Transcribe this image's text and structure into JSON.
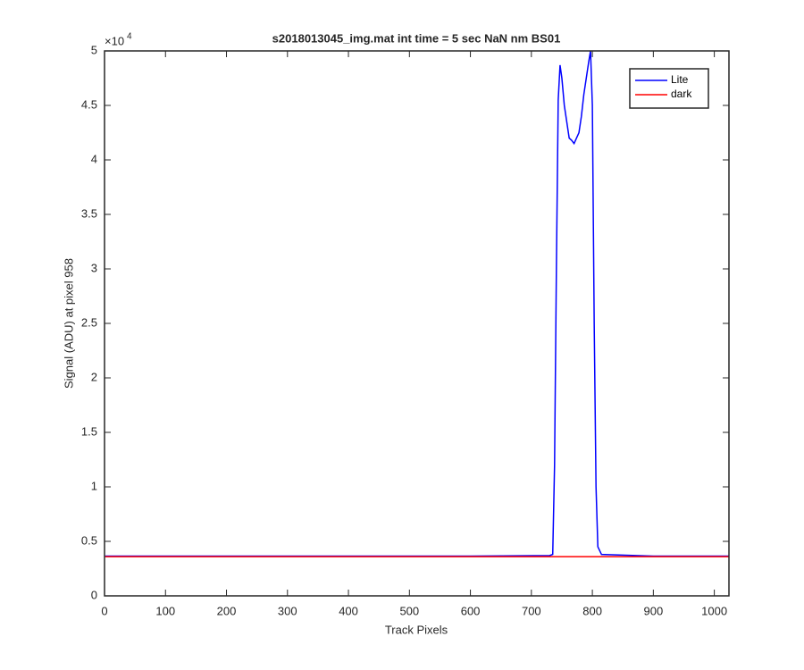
{
  "chart_data": {
    "type": "line",
    "title": "s2018013045_img.mat int time = 5 sec  NaN nm BS01",
    "x_label": "Track Pixels",
    "y_label": "Signal (ADU) at pixel 958",
    "y_multiplier": "×10",
    "y_multiplier_exponent": "4",
    "xlim": [
      0,
      1024
    ],
    "xticks": [
      0,
      100,
      200,
      300,
      400,
      500,
      600,
      700,
      800,
      900,
      1000
    ],
    "ylim": [
      0,
      50000
    ],
    "yticks": [
      0,
      {
        "value": 5000,
        "label": "0.5"
      },
      {
        "value": 10000,
        "label": "1"
      },
      {
        "value": 15000,
        "label": "1.5"
      },
      {
        "value": 20000,
        "label": "2"
      },
      {
        "value": 25000,
        "label": "2.5"
      },
      {
        "value": 30000,
        "label": "3"
      },
      {
        "value": 35000,
        "label": "3.5"
      },
      {
        "value": 40000,
        "label": "4"
      },
      {
        "value": 45000,
        "label": "4.5"
      },
      {
        "value": 50000,
        "label": "5"
      }
    ],
    "grid": false,
    "legend_position": "top-right",
    "series": [
      {
        "name": "Lite",
        "color": "#0000ff",
        "x": [
          1,
          200,
          400,
          600,
          730,
          735,
          738,
          741,
          744,
          747,
          750,
          754,
          758,
          762,
          766,
          770,
          774,
          778,
          782,
          786,
          790,
          794,
          797,
          800,
          803,
          806,
          809,
          815,
          900,
          1024
        ],
        "values": [
          3650,
          3650,
          3650,
          3650,
          3700,
          3800,
          12000,
          30000,
          45500,
          48700,
          47500,
          45000,
          43500,
          42000,
          41800,
          41500,
          42000,
          42500,
          44000,
          46000,
          47500,
          49000,
          50000,
          45000,
          25000,
          10000,
          4500,
          3800,
          3650,
          3650
        ]
      },
      {
        "name": "dark",
        "color": "#ff0000",
        "x": [
          1,
          256,
          512,
          768,
          1024
        ],
        "values": [
          3600,
          3600,
          3600,
          3600,
          3600
        ]
      }
    ]
  }
}
